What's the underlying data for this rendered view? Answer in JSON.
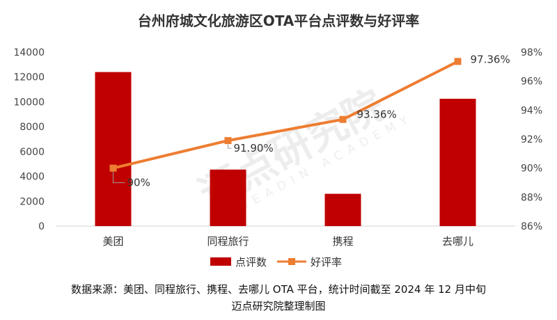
{
  "chart_data": {
    "type": "bar+line",
    "title": "台州府城文化旅游区OTA平台点评数与好评率",
    "categories": [
      "美团",
      "同程旅行",
      "携程",
      "去哪儿"
    ],
    "series": [
      {
        "name": "点评数",
        "type": "bar",
        "axis": "left",
        "color": "#c00000",
        "values": [
          12400,
          4550,
          2600,
          10250
        ]
      },
      {
        "name": "好评率",
        "type": "line",
        "axis": "right",
        "color": "#ed7d31",
        "values": [
          90,
          91.9,
          93.36,
          97.36
        ],
        "labels": [
          "90%",
          "91.90%",
          "93.36%",
          "97.36%"
        ]
      }
    ],
    "y_left": {
      "min": 0,
      "max": 14000,
      "step": 2000,
      "ticks": [
        "0",
        "2000",
        "4000",
        "6000",
        "8000",
        "10000",
        "12000",
        "14000"
      ]
    },
    "y_right": {
      "min": 86,
      "max": 98,
      "step": 2,
      "ticks": [
        "86%",
        "88%",
        "90%",
        "92%",
        "94%",
        "96%",
        "98%"
      ]
    },
    "legend": [
      "点评数",
      "好评率"
    ],
    "legend_position": "bottom"
  },
  "watermark": {
    "cn": "迈点研究院",
    "en": "MEADIN ACADEMY"
  },
  "source_note": {
    "line1": "数据来源：美团、同程旅行、携程、去哪儿 OTA 平台，统计时间截至 2024 年 12 月中旬",
    "line2": "迈点研究院整理制图"
  }
}
